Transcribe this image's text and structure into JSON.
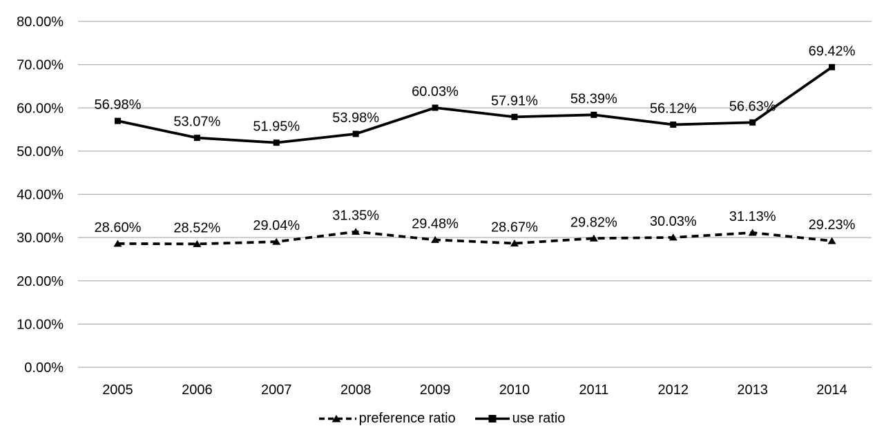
{
  "chart_data": {
    "type": "line",
    "categories": [
      "2005",
      "2006",
      "2007",
      "2008",
      "2009",
      "2010",
      "2011",
      "2012",
      "2013",
      "2014"
    ],
    "series": [
      {
        "name": "preference ratio",
        "line_style": "dashed",
        "marker": "triangle",
        "color": "#000000",
        "values": [
          28.6,
          28.52,
          29.04,
          31.35,
          29.48,
          28.67,
          29.82,
          30.03,
          31.13,
          29.23
        ],
        "data_labels": [
          "28.60%",
          "28.52%",
          "29.04%",
          "31.35%",
          "29.48%",
          "28.67%",
          "29.82%",
          "30.03%",
          "31.13%",
          "29.23%"
        ]
      },
      {
        "name": "use ratio",
        "line_style": "solid",
        "marker": "square",
        "color": "#000000",
        "values": [
          56.98,
          53.07,
          51.95,
          53.98,
          60.03,
          57.91,
          58.39,
          56.12,
          56.63,
          69.42
        ],
        "data_labels": [
          "56.98%",
          "53.07%",
          "51.95%",
          "53.98%",
          "60.03%",
          "57.91%",
          "58.39%",
          "56.12%",
          "56.63%",
          "69.42%"
        ]
      }
    ],
    "ylim": [
      0,
      80
    ],
    "ytick_step": 10,
    "ytick_labels": [
      "0.00%",
      "10.00%",
      "20.00%",
      "30.00%",
      "40.00%",
      "50.00%",
      "60.00%",
      "70.00%",
      "80.00%"
    ],
    "grid": true,
    "legend_position": "bottom-center",
    "gridline_color": "#b0b0b0",
    "text_color": "#000000",
    "background_color": "#ffffff"
  }
}
